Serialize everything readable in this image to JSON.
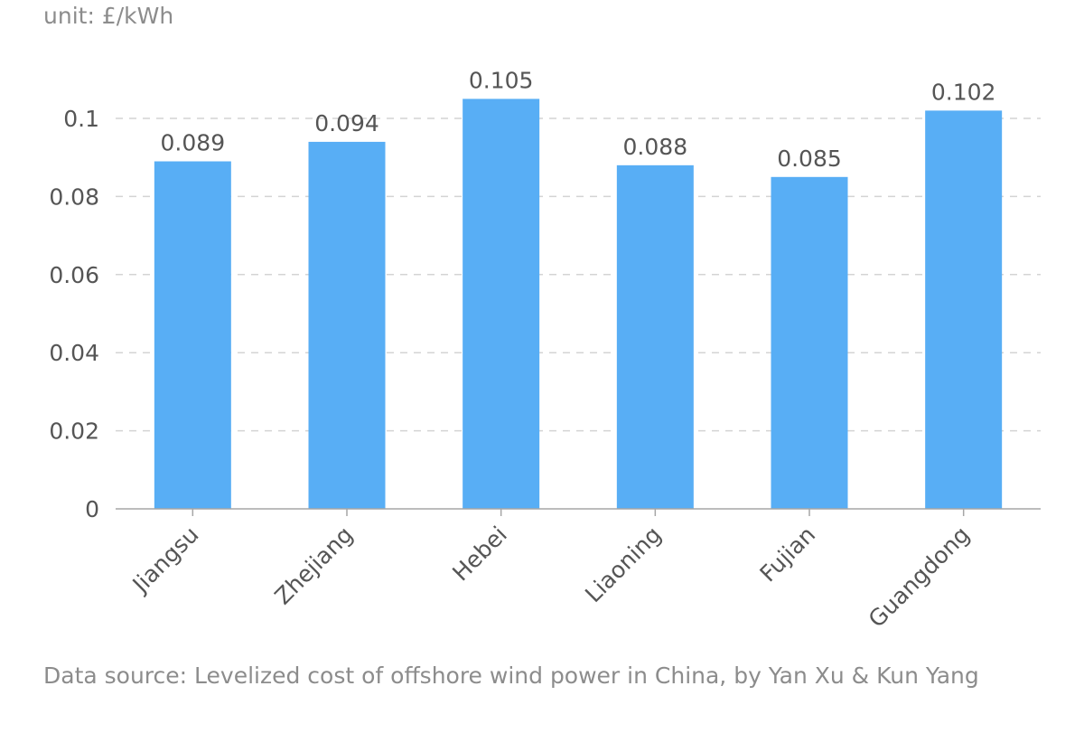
{
  "chart_data": {
    "type": "bar",
    "unit_label": "unit: £/kWh",
    "source_label": "Data source: Levelized cost of offshore wind power in China, by Yan Xu & Kun Yang",
    "categories": [
      "Jiangsu",
      "Zhejiang",
      "Hebei",
      "Liaoning",
      "Fujian",
      "Guangdong"
    ],
    "values": [
      0.089,
      0.094,
      0.105,
      0.088,
      0.085,
      0.102
    ],
    "value_labels": [
      "0.089",
      "0.094",
      "0.105",
      "0.088",
      "0.085",
      "0.102"
    ],
    "y_ticks": [
      0,
      0.02,
      0.04,
      0.06,
      0.08,
      0.1
    ],
    "y_tick_labels": [
      "0",
      "0.02",
      "0.04",
      "0.06",
      "0.08",
      "0.1"
    ],
    "ylim": [
      0,
      0.1
    ],
    "grid": true,
    "legend": "none",
    "bar_color": "#58aef5"
  }
}
